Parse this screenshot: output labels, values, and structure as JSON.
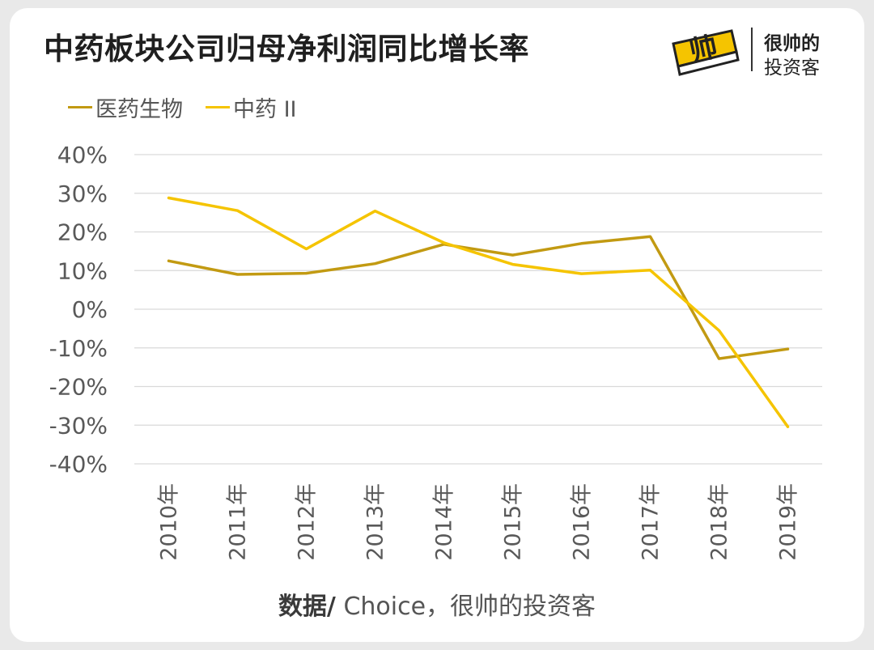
{
  "header": {
    "title": "中药板块公司归母净利润同比增长率"
  },
  "brand": {
    "logo_text": "帅",
    "line1": "很帅的",
    "line2": "投资客"
  },
  "source": {
    "label": "数据/",
    "text": " Choice，很帅的投资客"
  },
  "colors": {
    "series1": "#C29A12",
    "series2": "#F5C400",
    "grid": "#d9d9d9",
    "axis_text": "#595959"
  },
  "chart_data": {
    "type": "line",
    "title": "中药板块公司归母净利润同比增长率",
    "categories": [
      "2010年",
      "2011年",
      "2012年",
      "2013年",
      "2014年",
      "2015年",
      "2016年",
      "2017年",
      "2018年",
      "2019年"
    ],
    "series": [
      {
        "name": "医药生物",
        "values": [
          12.5,
          9.0,
          9.3,
          11.8,
          16.8,
          14.0,
          17.0,
          18.8,
          -12.8,
          -10.3
        ]
      },
      {
        "name": "中药 II",
        "values": [
          28.8,
          25.5,
          15.6,
          25.4,
          17.2,
          11.6,
          9.2,
          10.1,
          -5.5,
          -30.4
        ]
      }
    ],
    "y_ticks": [
      "40%",
      "30%",
      "20%",
      "10%",
      "0%",
      "-10%",
      "-20%",
      "-30%",
      "-40%"
    ],
    "ylim": [
      -40,
      40
    ],
    "grid": true,
    "legend_position": "top-left"
  }
}
